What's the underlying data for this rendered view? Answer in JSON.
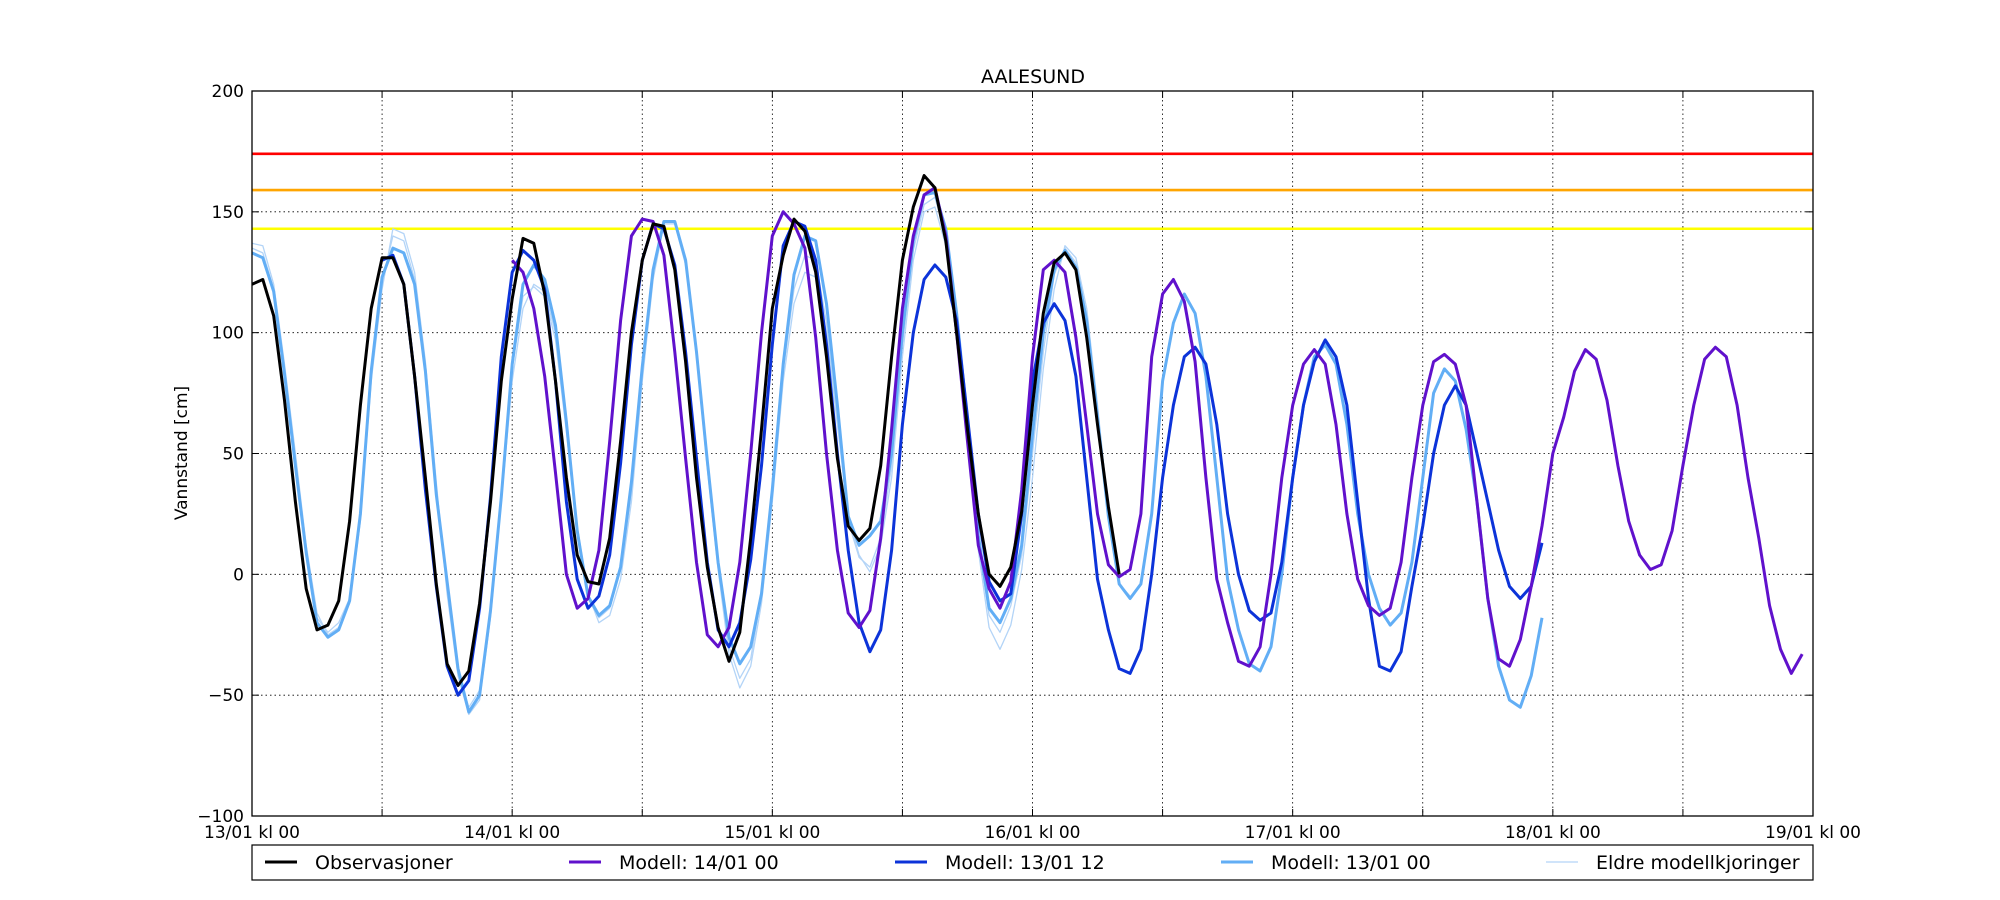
{
  "chart_data": {
    "type": "line",
    "title": "AALESUND",
    "xlabel": "",
    "ylabel": "Vannstand [cm]",
    "ylim": [
      -100,
      200
    ],
    "xlim": [
      "2021-01-13T00:00",
      "2021-01-19T00:00"
    ],
    "grid": true,
    "legend_position": "bottom",
    "x_tick_labels": [
      "13/01 kl 00",
      "14/01 kl 00",
      "15/01 kl 00",
      "16/01 kl 00",
      "17/01 kl 00",
      "18/01 kl 00",
      "19/01 kl 00"
    ],
    "y_ticks": [
      -100,
      -50,
      0,
      50,
      100,
      150,
      200
    ],
    "y_tick_labels": [
      "−100",
      "−50",
      "0",
      "50",
      "100",
      "150",
      "200"
    ],
    "thresholds": [
      {
        "value": 174,
        "color": "#ff0000"
      },
      {
        "value": 159,
        "color": "#ffa500"
      },
      {
        "value": 143,
        "color": "#ffff00"
      }
    ],
    "series": [
      {
        "name": "Eldre modellkjoringer",
        "color": "#b3d4f7",
        "start": "2021-01-13T00:00",
        "step_hours": 1,
        "values": [
          137,
          136,
          120,
          87,
          50,
          12,
          -16,
          -25,
          -22,
          -12,
          22,
          80,
          118,
          143,
          141,
          125,
          88,
          38,
          -8,
          -42,
          -58,
          -52,
          -18,
          30,
          80,
          110,
          120,
          117,
          100,
          62,
          20,
          -8,
          -20,
          -17,
          -2,
          30,
          80,
          122,
          145,
          145,
          128,
          90,
          44,
          2,
          -33,
          -47,
          -38,
          -12,
          30,
          80,
          112,
          125,
          123,
          100,
          62,
          24,
          8,
          1,
          12,
          40,
          90,
          130,
          150,
          152,
          136,
          100,
          55,
          10,
          -22,
          -31,
          -21,
          2,
          40,
          85,
          118,
          136,
          131,
          110,
          70,
          26,
          -4,
          -10
        ]
      },
      {
        "name": "Eldre modellkjoringer",
        "color": "#b3d4f7",
        "start": "2021-01-13T00:00",
        "step_hours": 1,
        "values": [
          135,
          133,
          118,
          84,
          47,
          10,
          -18,
          -24,
          -20,
          -10,
          25,
          83,
          121,
          140,
          138,
          122,
          85,
          35,
          -5,
          -40,
          -55,
          -48,
          -14,
          34,
          85,
          115,
          119,
          115,
          97,
          59,
          17,
          -10,
          -18,
          -14,
          2,
          34,
          84,
          125,
          146,
          146,
          130,
          92,
          47,
          5,
          -30,
          -43,
          -35,
          -8,
          33,
          84,
          118,
          132,
          130,
          104,
          64,
          22,
          7,
          3,
          15,
          45,
          95,
          134,
          153,
          156,
          140,
          104,
          58,
          13,
          -17,
          -24,
          -13,
          8,
          50,
          92,
          124,
          135,
          129,
          107,
          67,
          23,
          -4,
          -9
        ]
      },
      {
        "name": "Modell: 13/01 00",
        "color": "#62aef5",
        "start": "2021-01-13T00:00",
        "step_hours": 1,
        "values": [
          133,
          131,
          117,
          83,
          45,
          9,
          -20,
          -26,
          -23,
          -11,
          25,
          84,
          123,
          135,
          133,
          120,
          84,
          33,
          -3,
          -39,
          -57,
          -50,
          -15,
          32,
          87,
          120,
          128,
          122,
          103,
          63,
          18,
          -9,
          -17,
          -13,
          3,
          38,
          86,
          126,
          146,
          146,
          130,
          92,
          47,
          5,
          -26,
          -37,
          -30,
          -8,
          35,
          87,
          124,
          140,
          138,
          112,
          70,
          24,
          12,
          16,
          22,
          50,
          100,
          138,
          157,
          158,
          143,
          108,
          63,
          16,
          -14,
          -20,
          -10,
          12,
          58,
          100,
          126,
          134,
          127,
          105,
          65,
          24,
          -4,
          -10,
          -4,
          25,
          80,
          104,
          116,
          108,
          82,
          40,
          -2,
          -23,
          -37,
          -40,
          -30,
          0,
          40,
          70,
          90,
          95,
          87,
          62,
          25,
          0,
          -14,
          -21,
          -16,
          5,
          40,
          75,
          85,
          80,
          60,
          30,
          -10,
          -38,
          -52,
          -55,
          -42,
          -18
        ]
      },
      {
        "name": "Modell: 13/01 12",
        "color": "#0c33d9",
        "start": "2021-01-13T12:00",
        "step_hours": 1,
        "values": [
          130,
          132,
          120,
          82,
          35,
          -5,
          -38,
          -50,
          -44,
          -14,
          32,
          90,
          125,
          134,
          130,
          118,
          80,
          30,
          -2,
          -14,
          -9,
          8,
          46,
          95,
          130,
          145,
          143,
          128,
          92,
          48,
          5,
          -23,
          -30,
          -20,
          6,
          45,
          95,
          136,
          146,
          144,
          130,
          95,
          50,
          10,
          -20,
          -32,
          -23,
          10,
          62,
          100,
          122,
          128,
          123,
          105,
          65,
          25,
          -3,
          -11,
          -8,
          25,
          80,
          104,
          112,
          105,
          82,
          40,
          -2,
          -23,
          -39,
          -41,
          -31,
          0,
          40,
          70,
          90,
          94,
          87,
          62,
          25,
          0,
          -15,
          -19,
          -16,
          5,
          40,
          70,
          88,
          97,
          90,
          70,
          30,
          -10,
          -38,
          -40,
          -32,
          -5,
          20,
          50,
          70,
          78,
          70,
          50,
          30,
          10,
          -5,
          -10,
          -5,
          13
        ]
      },
      {
        "name": "Modell: 14/01 00",
        "color": "#6011cc",
        "start": "2021-01-14T00:00",
        "step_hours": 1,
        "values": [
          130,
          125,
          110,
          82,
          42,
          0,
          -14,
          -10,
          10,
          55,
          105,
          140,
          147,
          146,
          132,
          92,
          48,
          5,
          -25,
          -30,
          -22,
          5,
          50,
          100,
          140,
          150,
          145,
          135,
          98,
          50,
          10,
          -16,
          -22,
          -15,
          15,
          60,
          110,
          140,
          157,
          160,
          140,
          100,
          55,
          12,
          -6,
          -14,
          -3,
          35,
          90,
          126,
          130,
          125,
          98,
          62,
          25,
          4,
          -1,
          2,
          25,
          90,
          116,
          122,
          113,
          88,
          40,
          -2,
          -20,
          -36,
          -38,
          -30,
          0,
          40,
          70,
          87,
          93,
          87,
          62,
          25,
          -2,
          -13,
          -17,
          -14,
          5,
          40,
          70,
          88,
          91,
          87,
          70,
          30,
          -10,
          -35,
          -38,
          -27,
          -5,
          20,
          50,
          65,
          84,
          93,
          89,
          72,
          45,
          22,
          8,
          2,
          4,
          18,
          45,
          70,
          89,
          94,
          90,
          70,
          40,
          15,
          -13,
          -31,
          -41,
          -33
        ]
      },
      {
        "name": "Observasjoner",
        "color": "#000000",
        "start": "2021-01-13T00:00",
        "step_hours": 1,
        "values": [
          120,
          122,
          107,
          72,
          30,
          -6,
          -23,
          -21,
          -11,
          22,
          70,
          110,
          131,
          131,
          120,
          82,
          40,
          -4,
          -37,
          -46,
          -40,
          -12,
          30,
          80,
          114,
          139,
          137,
          116,
          80,
          40,
          8,
          -3,
          -4,
          15,
          55,
          100,
          130,
          145,
          144,
          126,
          88,
          40,
          3,
          -22,
          -36,
          -24,
          15,
          60,
          110,
          132,
          147,
          142,
          125,
          90,
          48,
          20,
          14,
          19,
          45,
          90,
          130,
          152,
          165,
          160,
          138,
          100,
          60,
          25,
          0,
          -5,
          3,
          26,
          70,
          108,
          129,
          133,
          126,
          98,
          62,
          28,
          0
        ]
      }
    ]
  }
}
